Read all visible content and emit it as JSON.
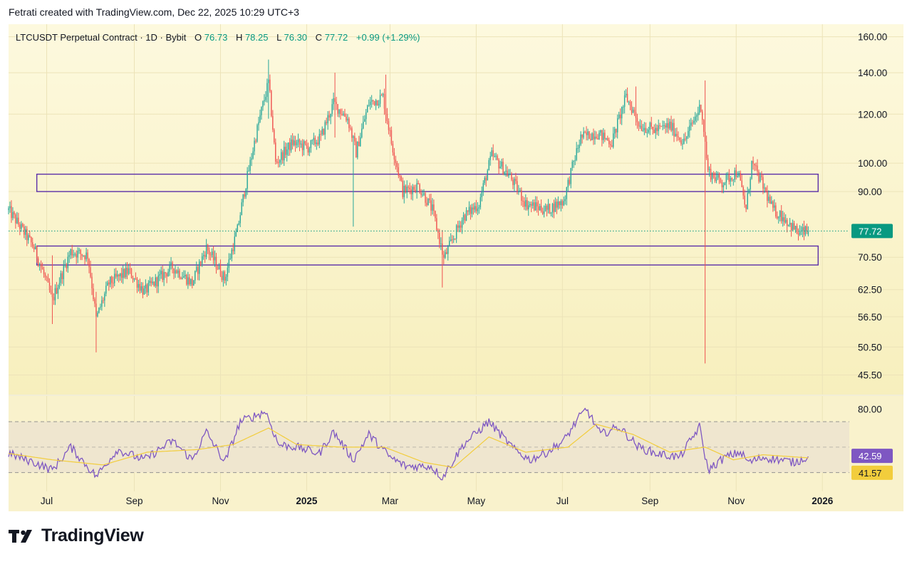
{
  "caption": "Fetrati created with TradingView.com, Dec 22, 2025 10:29 UTC+3",
  "header": {
    "symbol": "LTCUSDT Perpetual Contract · 1D · Bybit",
    "o_label": "O",
    "o_value": "76.73",
    "h_label": "H",
    "h_value": "78.25",
    "l_label": "L",
    "l_value": "76.30",
    "c_label": "C",
    "c_value": "77.72",
    "change": "+0.99 (+1.29%)"
  },
  "logo_text": "TradingView",
  "colors": {
    "bg_top": "#fdf9de",
    "bg_bottom": "#f7efbd",
    "up": "#26a69a",
    "down": "#ef5350",
    "box": "#5b2fa8",
    "rsi": "#7e57c2",
    "rsi_ma": "#f2cd3c",
    "last_price": "#089981"
  },
  "chart_data": [
    {
      "type": "candlestick",
      "title": "LTCUSDT Perpetual Contract · 1D · Bybit",
      "scale": "log",
      "y_ticks": [
        "160.00",
        "140.00",
        "120.00",
        "100.00",
        "90.00",
        "70.50",
        "62.50",
        "56.50",
        "50.50",
        "45.50"
      ],
      "y_tick_values": [
        160,
        140,
        120,
        100,
        90,
        70.5,
        62.5,
        56.5,
        50.5,
        45.5
      ],
      "ylim": [
        43,
        165
      ],
      "x_ticks": [
        "Jul",
        "Sep",
        "Nov",
        "2025",
        "Mar",
        "May",
        "Jul",
        "Sep",
        "Nov",
        "2026"
      ],
      "x_tick_dates": [
        "2024-07-01",
        "2024-09-01",
        "2024-11-01",
        "2025-01-01",
        "2025-03-01",
        "2025-05-01",
        "2025-07-01",
        "2025-09-01",
        "2025-11-01",
        "2026-01-01"
      ],
      "x_start": "2024-06-04",
      "x_end": "2026-01-14",
      "last_price": "77.72",
      "last_date": "2025-12-22",
      "zones": [
        {
          "from_date": "2024-06-24",
          "to_date": "2025-12-29",
          "low": 90,
          "high": 96
        },
        {
          "from_date": "2024-06-24",
          "to_date": "2025-12-29",
          "low": 68.5,
          "high": 73.5
        }
      ],
      "path": [
        [
          "2024-06-04",
          84
        ],
        [
          "2024-06-22",
          73
        ],
        [
          "2024-07-05",
          60
        ],
        [
          "2024-07-18",
          72
        ],
        [
          "2024-07-30",
          71
        ],
        [
          "2024-08-05",
          56
        ],
        [
          "2024-08-14",
          64
        ],
        [
          "2024-08-28",
          67
        ],
        [
          "2024-09-08",
          62
        ],
        [
          "2024-09-28",
          68
        ],
        [
          "2024-10-12",
          64
        ],
        [
          "2024-10-22",
          73
        ],
        [
          "2024-11-04",
          65
        ],
        [
          "2024-11-13",
          78
        ],
        [
          "2024-11-22",
          100
        ],
        [
          "2024-12-05",
          135
        ],
        [
          "2024-12-10",
          100
        ],
        [
          "2024-12-22",
          108
        ],
        [
          "2025-01-02",
          106
        ],
        [
          "2025-01-11",
          110
        ],
        [
          "2025-01-20",
          125
        ],
        [
          "2025-01-30",
          118
        ],
        [
          "2025-02-05",
          104
        ],
        [
          "2025-02-14",
          125
        ],
        [
          "2025-02-24",
          128
        ],
        [
          "2025-03-02",
          108
        ],
        [
          "2025-03-10",
          90
        ],
        [
          "2025-03-21",
          92
        ],
        [
          "2025-03-31",
          84
        ],
        [
          "2025-04-08",
          70
        ],
        [
          "2025-04-22",
          82
        ],
        [
          "2025-05-03",
          86
        ],
        [
          "2025-05-12",
          103
        ],
        [
          "2025-05-25",
          95
        ],
        [
          "2025-06-05",
          86
        ],
        [
          "2025-06-20",
          84
        ],
        [
          "2025-07-02",
          87
        ],
        [
          "2025-07-14",
          110
        ],
        [
          "2025-07-25",
          112
        ],
        [
          "2025-08-05",
          108
        ],
        [
          "2025-08-15",
          128
        ],
        [
          "2025-08-25",
          115
        ],
        [
          "2025-09-05",
          113
        ],
        [
          "2025-09-15",
          115
        ],
        [
          "2025-09-25",
          108
        ],
        [
          "2025-10-07",
          124
        ],
        [
          "2025-10-12",
          97
        ],
        [
          "2025-10-22",
          93
        ],
        [
          "2025-11-02",
          97
        ],
        [
          "2025-11-08",
          84
        ],
        [
          "2025-11-12",
          100
        ],
        [
          "2025-11-18",
          94
        ],
        [
          "2025-11-27",
          84
        ],
        [
          "2025-12-04",
          82
        ],
        [
          "2025-12-15",
          77
        ],
        [
          "2025-12-22",
          77.72
        ]
      ],
      "spikes": [
        {
          "date": "2024-07-05",
          "high": 71,
          "low": 55
        },
        {
          "date": "2024-08-05",
          "high": 62,
          "low": 49.5
        },
        {
          "date": "2024-12-05",
          "high": 147,
          "low": 118
        },
        {
          "date": "2025-01-21",
          "high": 140,
          "low": 110
        },
        {
          "date": "2025-02-03",
          "high": 110,
          "low": 79
        },
        {
          "date": "2025-02-26",
          "high": 139,
          "low": 116
        },
        {
          "date": "2025-04-07",
          "high": 78,
          "low": 63
        },
        {
          "date": "2025-08-22",
          "high": 133,
          "low": 115
        },
        {
          "date": "2025-10-10",
          "high": 136,
          "low": 47.5
        }
      ]
    },
    {
      "type": "line",
      "indicator": "RSI",
      "y_ticks": [
        "80.00"
      ],
      "y_tick_values": [
        80
      ],
      "band": [
        30,
        70
      ],
      "ylim": [
        18,
        88
      ],
      "series": [
        {
          "key": "rsi",
          "value_label": "42.59",
          "path": [
            [
              "2024-06-04",
              45
            ],
            [
              "2024-06-22",
              38
            ],
            [
              "2024-07-05",
              32
            ],
            [
              "2024-07-18",
              50
            ],
            [
              "2024-08-05",
              27
            ],
            [
              "2024-08-20",
              48
            ],
            [
              "2024-09-08",
              40
            ],
            [
              "2024-09-28",
              55
            ],
            [
              "2024-10-12",
              40
            ],
            [
              "2024-10-22",
              62
            ],
            [
              "2024-11-04",
              38
            ],
            [
              "2024-11-15",
              70
            ],
            [
              "2024-12-03",
              78
            ],
            [
              "2024-12-12",
              52
            ],
            [
              "2024-12-25",
              50
            ],
            [
              "2025-01-10",
              45
            ],
            [
              "2025-01-20",
              62
            ],
            [
              "2025-02-03",
              40
            ],
            [
              "2025-02-14",
              60
            ],
            [
              "2025-03-01",
              42
            ],
            [
              "2025-03-12",
              35
            ],
            [
              "2025-03-30",
              35
            ],
            [
              "2025-04-07",
              26
            ],
            [
              "2025-04-22",
              52
            ],
            [
              "2025-05-10",
              70
            ],
            [
              "2025-05-28",
              48
            ],
            [
              "2025-06-08",
              40
            ],
            [
              "2025-06-20",
              46
            ],
            [
              "2025-07-02",
              55
            ],
            [
              "2025-07-12",
              72
            ],
            [
              "2025-07-18",
              80
            ],
            [
              "2025-07-28",
              60
            ],
            [
              "2025-08-10",
              66
            ],
            [
              "2025-08-24",
              50
            ],
            [
              "2025-09-05",
              45
            ],
            [
              "2025-09-22",
              42
            ],
            [
              "2025-10-06",
              66
            ],
            [
              "2025-10-12",
              32
            ],
            [
              "2025-10-24",
              42
            ],
            [
              "2025-11-04",
              46
            ],
            [
              "2025-11-10",
              38
            ],
            [
              "2025-11-20",
              42
            ],
            [
              "2025-12-02",
              40
            ],
            [
              "2025-12-12",
              38
            ],
            [
              "2025-12-22",
              42.59
            ]
          ]
        },
        {
          "key": "rsi_ma",
          "value_label": "41.57",
          "path": [
            [
              "2024-06-04",
              45
            ],
            [
              "2024-07-05",
              40
            ],
            [
              "2024-08-10",
              36
            ],
            [
              "2024-09-10",
              46
            ],
            [
              "2024-10-15",
              48
            ],
            [
              "2024-11-10",
              52
            ],
            [
              "2024-12-05",
              65
            ],
            [
              "2024-12-25",
              52
            ],
            [
              "2025-01-25",
              50
            ],
            [
              "2025-02-25",
              50
            ],
            [
              "2025-03-25",
              38
            ],
            [
              "2025-04-15",
              34
            ],
            [
              "2025-05-10",
              58
            ],
            [
              "2025-06-05",
              46
            ],
            [
              "2025-07-05",
              50
            ],
            [
              "2025-07-25",
              68
            ],
            [
              "2025-08-20",
              60
            ],
            [
              "2025-09-15",
              46
            ],
            [
              "2025-10-10",
              50
            ],
            [
              "2025-10-30",
              40
            ],
            [
              "2025-11-20",
              44
            ],
            [
              "2025-12-22",
              41.57
            ]
          ]
        }
      ]
    }
  ]
}
